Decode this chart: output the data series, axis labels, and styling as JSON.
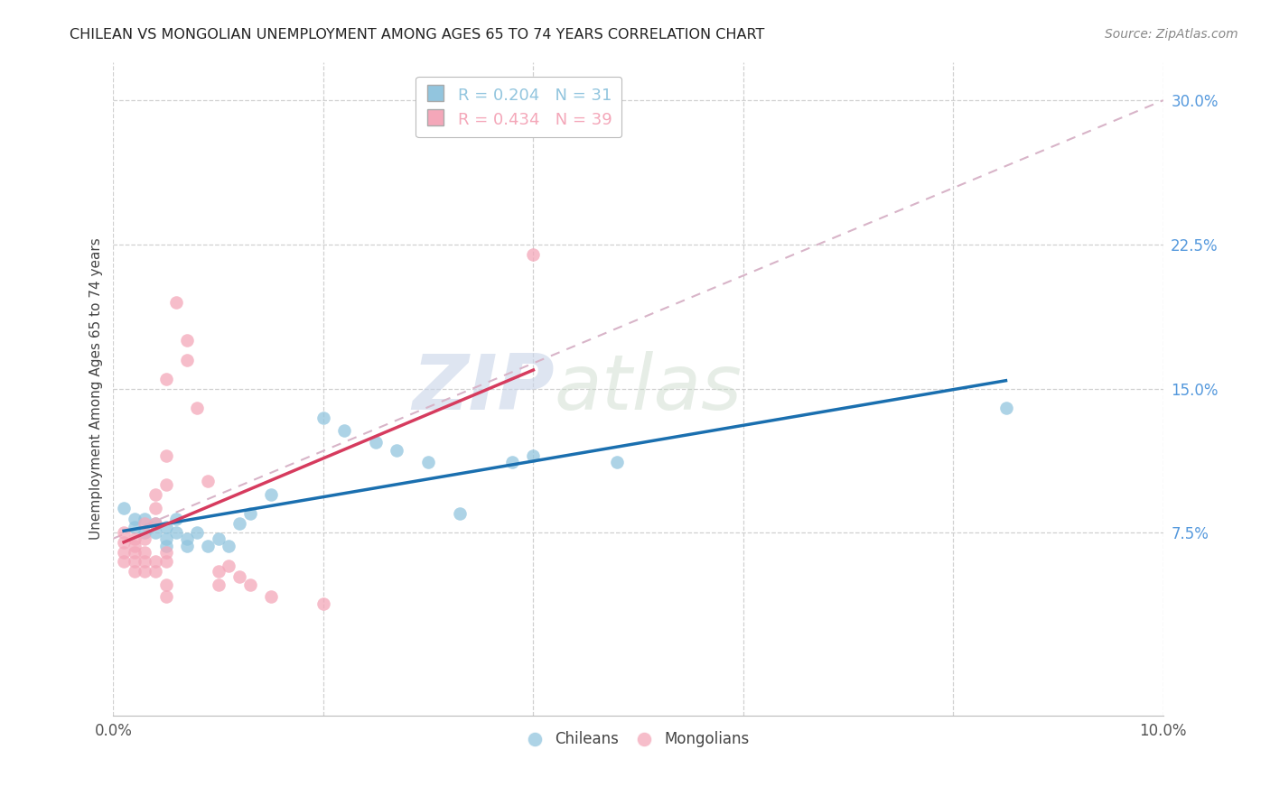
{
  "title": "CHILEAN VS MONGOLIAN UNEMPLOYMENT AMONG AGES 65 TO 74 YEARS CORRELATION CHART",
  "source": "Source: ZipAtlas.com",
  "ylabel": "Unemployment Among Ages 65 to 74 years",
  "xlim": [
    0.0,
    0.1
  ],
  "ylim": [
    -0.02,
    0.32
  ],
  "plot_ylim": [
    0.0,
    0.3
  ],
  "xticks": [
    0.0,
    0.1
  ],
  "xtick_labels": [
    "0.0%",
    "10.0%"
  ],
  "yticks": [
    0.075,
    0.15,
    0.225,
    0.3
  ],
  "ytick_labels": [
    "7.5%",
    "15.0%",
    "22.5%",
    "30.0%"
  ],
  "chilean_color": "#92c5de",
  "mongolian_color": "#f4a7b9",
  "trendline_chilean_color": "#1a6faf",
  "trendline_mongolian_color": "#d63b5e",
  "trendline_dashed_color": "#d8b4c8",
  "background_color": "#ffffff",
  "grid_color": "#d0d0d0",
  "watermark_zip": "ZIP",
  "watermark_atlas": "atlas",
  "chilean_R": "0.204",
  "chilean_N": "31",
  "mongolian_R": "0.434",
  "mongolian_N": "39",
  "chilean_points": [
    [
      0.001,
      0.088
    ],
    [
      0.002,
      0.082
    ],
    [
      0.002,
      0.078
    ],
    [
      0.003,
      0.082
    ],
    [
      0.003,
      0.075
    ],
    [
      0.004,
      0.08
    ],
    [
      0.004,
      0.075
    ],
    [
      0.005,
      0.078
    ],
    [
      0.005,
      0.072
    ],
    [
      0.005,
      0.068
    ],
    [
      0.006,
      0.082
    ],
    [
      0.006,
      0.075
    ],
    [
      0.007,
      0.072
    ],
    [
      0.007,
      0.068
    ],
    [
      0.008,
      0.075
    ],
    [
      0.009,
      0.068
    ],
    [
      0.01,
      0.072
    ],
    [
      0.011,
      0.068
    ],
    [
      0.012,
      0.08
    ],
    [
      0.013,
      0.085
    ],
    [
      0.015,
      0.095
    ],
    [
      0.02,
      0.135
    ],
    [
      0.022,
      0.128
    ],
    [
      0.025,
      0.122
    ],
    [
      0.027,
      0.118
    ],
    [
      0.03,
      0.112
    ],
    [
      0.033,
      0.085
    ],
    [
      0.038,
      0.112
    ],
    [
      0.04,
      0.115
    ],
    [
      0.048,
      0.112
    ],
    [
      0.085,
      0.14
    ]
  ],
  "mongolian_points": [
    [
      0.001,
      0.075
    ],
    [
      0.001,
      0.07
    ],
    [
      0.001,
      0.065
    ],
    [
      0.001,
      0.06
    ],
    [
      0.002,
      0.072
    ],
    [
      0.002,
      0.068
    ],
    [
      0.002,
      0.065
    ],
    [
      0.002,
      0.06
    ],
    [
      0.002,
      0.055
    ],
    [
      0.003,
      0.08
    ],
    [
      0.003,
      0.072
    ],
    [
      0.003,
      0.065
    ],
    [
      0.003,
      0.06
    ],
    [
      0.003,
      0.055
    ],
    [
      0.004,
      0.095
    ],
    [
      0.004,
      0.088
    ],
    [
      0.004,
      0.08
    ],
    [
      0.004,
      0.06
    ],
    [
      0.004,
      0.055
    ],
    [
      0.005,
      0.155
    ],
    [
      0.005,
      0.115
    ],
    [
      0.005,
      0.1
    ],
    [
      0.005,
      0.065
    ],
    [
      0.005,
      0.06
    ],
    [
      0.005,
      0.048
    ],
    [
      0.005,
      0.042
    ],
    [
      0.006,
      0.195
    ],
    [
      0.007,
      0.175
    ],
    [
      0.007,
      0.165
    ],
    [
      0.008,
      0.14
    ],
    [
      0.009,
      0.102
    ],
    [
      0.01,
      0.055
    ],
    [
      0.01,
      0.048
    ],
    [
      0.011,
      0.058
    ],
    [
      0.012,
      0.052
    ],
    [
      0.013,
      0.048
    ],
    [
      0.015,
      0.042
    ],
    [
      0.02,
      0.038
    ],
    [
      0.04,
      0.22
    ]
  ]
}
